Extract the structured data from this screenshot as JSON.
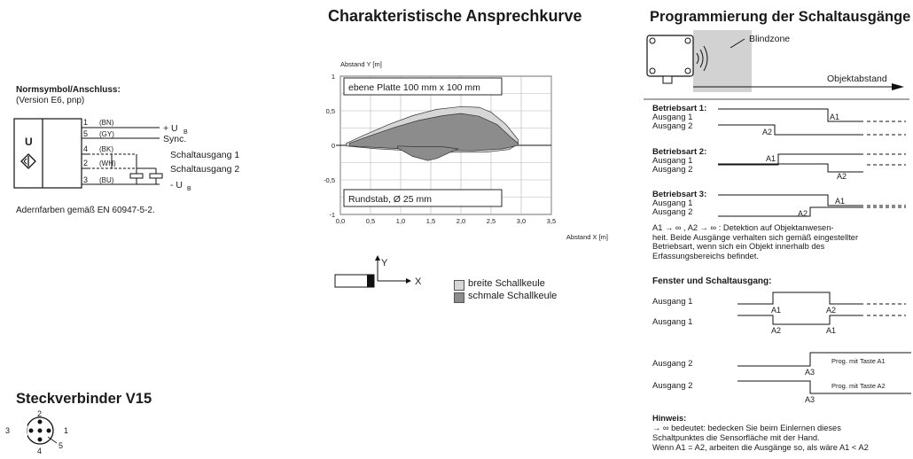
{
  "left": {
    "normsymbol_title": "Normsymbol/Anschluss:",
    "normsymbol_version": "(Version E6, pnp)",
    "symbol_letter": "U",
    "wires": [
      {
        "num": "1",
        "code": "(BN)",
        "label": "+ U",
        "sub": "B"
      },
      {
        "num": "5",
        "code": "(GY)",
        "label": "Sync.",
        "sub": ""
      },
      {
        "num": "4",
        "code": "(BK)",
        "label": "Schaltausgang 1",
        "sub": ""
      },
      {
        "num": "2",
        "code": "(WH)",
        "label": "Schaltausgang 2",
        "sub": ""
      },
      {
        "num": "3",
        "code": "(BU)",
        "label": "- U",
        "sub": "B"
      }
    ],
    "color_note": "Adernfarben gemäß EN 60947-5-2.",
    "connector_title": "Steckverbinder V15",
    "pins": [
      "2",
      "3",
      "1",
      "4",
      "5"
    ]
  },
  "middle": {
    "title": "Charakteristische Ansprechkurve",
    "legend_wide": "breite Schallkeule",
    "legend_narrow": "schmale Schallkeule",
    "axis_x_arrow": "X",
    "axis_y_arrow": "Y"
  },
  "chart_data": {
    "type": "area",
    "ylabel": "Abstand Y [m]",
    "xlabel": "Abstand X [m]",
    "xlim": [
      0,
      3.5
    ],
    "ylim": [
      -1,
      1
    ],
    "x_ticks": [
      "0,0",
      "0,5",
      "1,0",
      "1,5",
      "2,0",
      "2,5",
      "3,0",
      "3,5"
    ],
    "y_ticks": [
      "1",
      "0,5",
      "0",
      "-0,5",
      "-1"
    ],
    "grid": true,
    "annotations": [
      "ebene Platte 100 mm x 100 mm",
      "Rundstab, Ø 25 mm"
    ],
    "series": [
      {
        "name": "breite Schallkeule",
        "color": "#d6d6d6",
        "upper": [
          [
            0.1,
            0.03
          ],
          [
            0.4,
            0.15
          ],
          [
            0.8,
            0.3
          ],
          [
            1.2,
            0.43
          ],
          [
            1.6,
            0.52
          ],
          [
            2.0,
            0.56
          ],
          [
            2.3,
            0.55
          ],
          [
            2.5,
            0.48
          ],
          [
            2.75,
            0.3
          ],
          [
            2.95,
            0.08
          ]
        ],
        "lower": [
          [
            0.1,
            -0.01
          ],
          [
            0.6,
            -0.05
          ],
          [
            1.2,
            -0.08
          ],
          [
            1.8,
            -0.1
          ],
          [
            2.4,
            -0.1
          ],
          [
            2.8,
            -0.06
          ],
          [
            2.95,
            0.02
          ]
        ]
      },
      {
        "name": "schmale Schallkeule",
        "color": "#8c8c8c",
        "upper": [
          [
            0.15,
            0.03
          ],
          [
            0.5,
            0.14
          ],
          [
            0.9,
            0.26
          ],
          [
            1.3,
            0.36
          ],
          [
            1.7,
            0.43
          ],
          [
            2.0,
            0.46
          ],
          [
            2.3,
            0.42
          ],
          [
            2.6,
            0.3
          ],
          [
            2.85,
            0.1
          ],
          [
            2.95,
            0.03
          ]
        ],
        "lower": [
          [
            0.15,
            -0.01
          ],
          [
            0.8,
            -0.04
          ],
          [
            1.5,
            -0.07
          ],
          [
            2.2,
            -0.08
          ],
          [
            2.7,
            -0.05
          ],
          [
            2.95,
            0.0
          ]
        ]
      },
      {
        "name": "Rundstab, Ø 25 mm",
        "color": "#8c8c8c",
        "upper": [
          [
            0.95,
            -0.01
          ],
          [
            1.3,
            -0.02
          ],
          [
            1.7,
            -0.02
          ],
          [
            1.95,
            -0.05
          ]
        ],
        "lower": [
          [
            0.95,
            -0.04
          ],
          [
            1.2,
            -0.16
          ],
          [
            1.45,
            -0.22
          ],
          [
            1.6,
            -0.19
          ],
          [
            1.95,
            -0.05
          ]
        ]
      }
    ]
  },
  "right": {
    "title": "Programmierung der Schaltausgänge",
    "blindzone": "Blindzone",
    "objektabstand": "Objektabstand",
    "modes": [
      {
        "title": "Betriebsart 1:",
        "out1": "Ausgang 1",
        "out2": "Ausgang 2",
        "t1": "A1",
        "t2": "A2"
      },
      {
        "title": "Betriebsart 2:",
        "out1": "Ausgang 1",
        "out2": "Ausgang 2",
        "t1": "A1",
        "t2": "A2"
      },
      {
        "title": "Betriebsart 3:",
        "out1": "Ausgang 1",
        "out2": "Ausgang 2",
        "t1": "A1",
        "t2": "A2"
      }
    ],
    "infinity_note_1": "A1 → ∞ , A2 → ∞ : Detektion auf Objektanwesen-",
    "infinity_note_2": "heit. Beide Ausgänge verhalten sich gemäß eingestellter",
    "infinity_note_3": "Betriebsart, wenn sich ein Objekt innerhalb des",
    "infinity_note_4": "Erfassungsbereichs befindet.",
    "window_title": "Fenster und Schaltausgang:",
    "window_rows": [
      {
        "label": "Ausgang 1",
        "a": "A1",
        "b": "A2",
        "note": ""
      },
      {
        "label": "Ausgang 1",
        "a": "A2",
        "b": "A1",
        "note": ""
      },
      {
        "label": "Ausgang 2",
        "a": "A3",
        "b": "",
        "note": "Prog. mit Taste A1"
      },
      {
        "label": "Ausgang 2",
        "a": "A3",
        "b": "",
        "note": "Prog. mit Taste A2"
      }
    ],
    "hint_title": "Hinweis:",
    "hint_1": "→ ∞  bedeutet: bedecken Sie beim Einlernen dieses",
    "hint_2": "Schaltpunktes die Sensorfläche mit der Hand.",
    "hint_3": "Wenn A1 = A2, arbeiten die Ausgänge so, als wäre A1 < A2"
  }
}
